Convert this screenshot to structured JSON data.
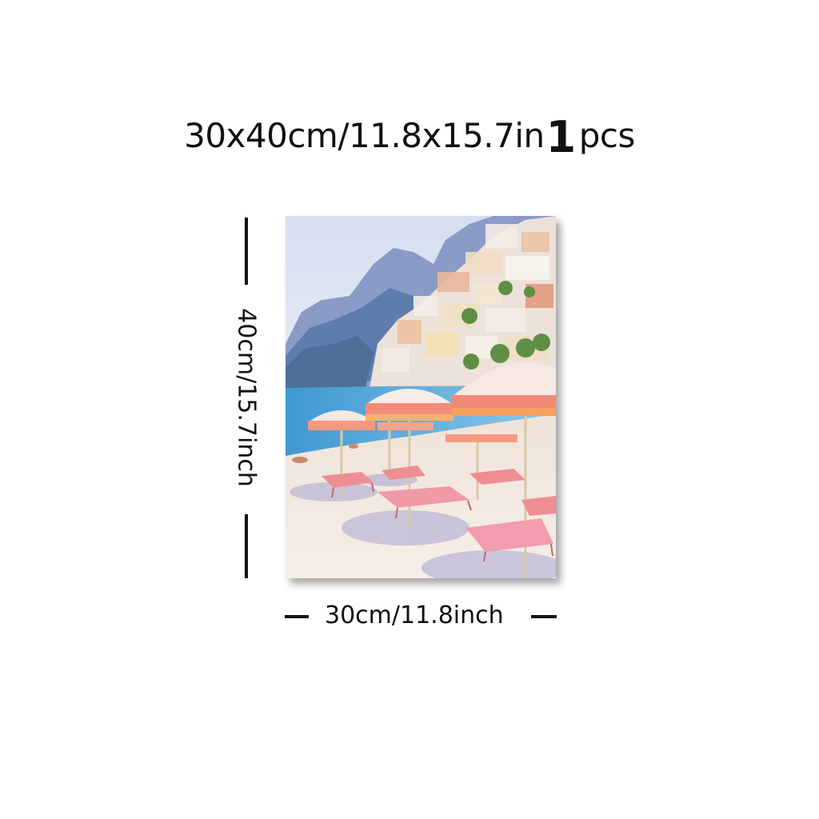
{
  "header": {
    "size_text": "30x40cm/11.8x15.7in",
    "quantity": "1",
    "unit": "pcs"
  },
  "dimensions": {
    "height_label": "40cm/15.7inch",
    "width_label": "30cm/11.8inch"
  },
  "colors": {
    "line": "#111111",
    "umbrella": "#f08a78",
    "sea": "#4aa3d4",
    "sand": "#f1e9e2"
  }
}
